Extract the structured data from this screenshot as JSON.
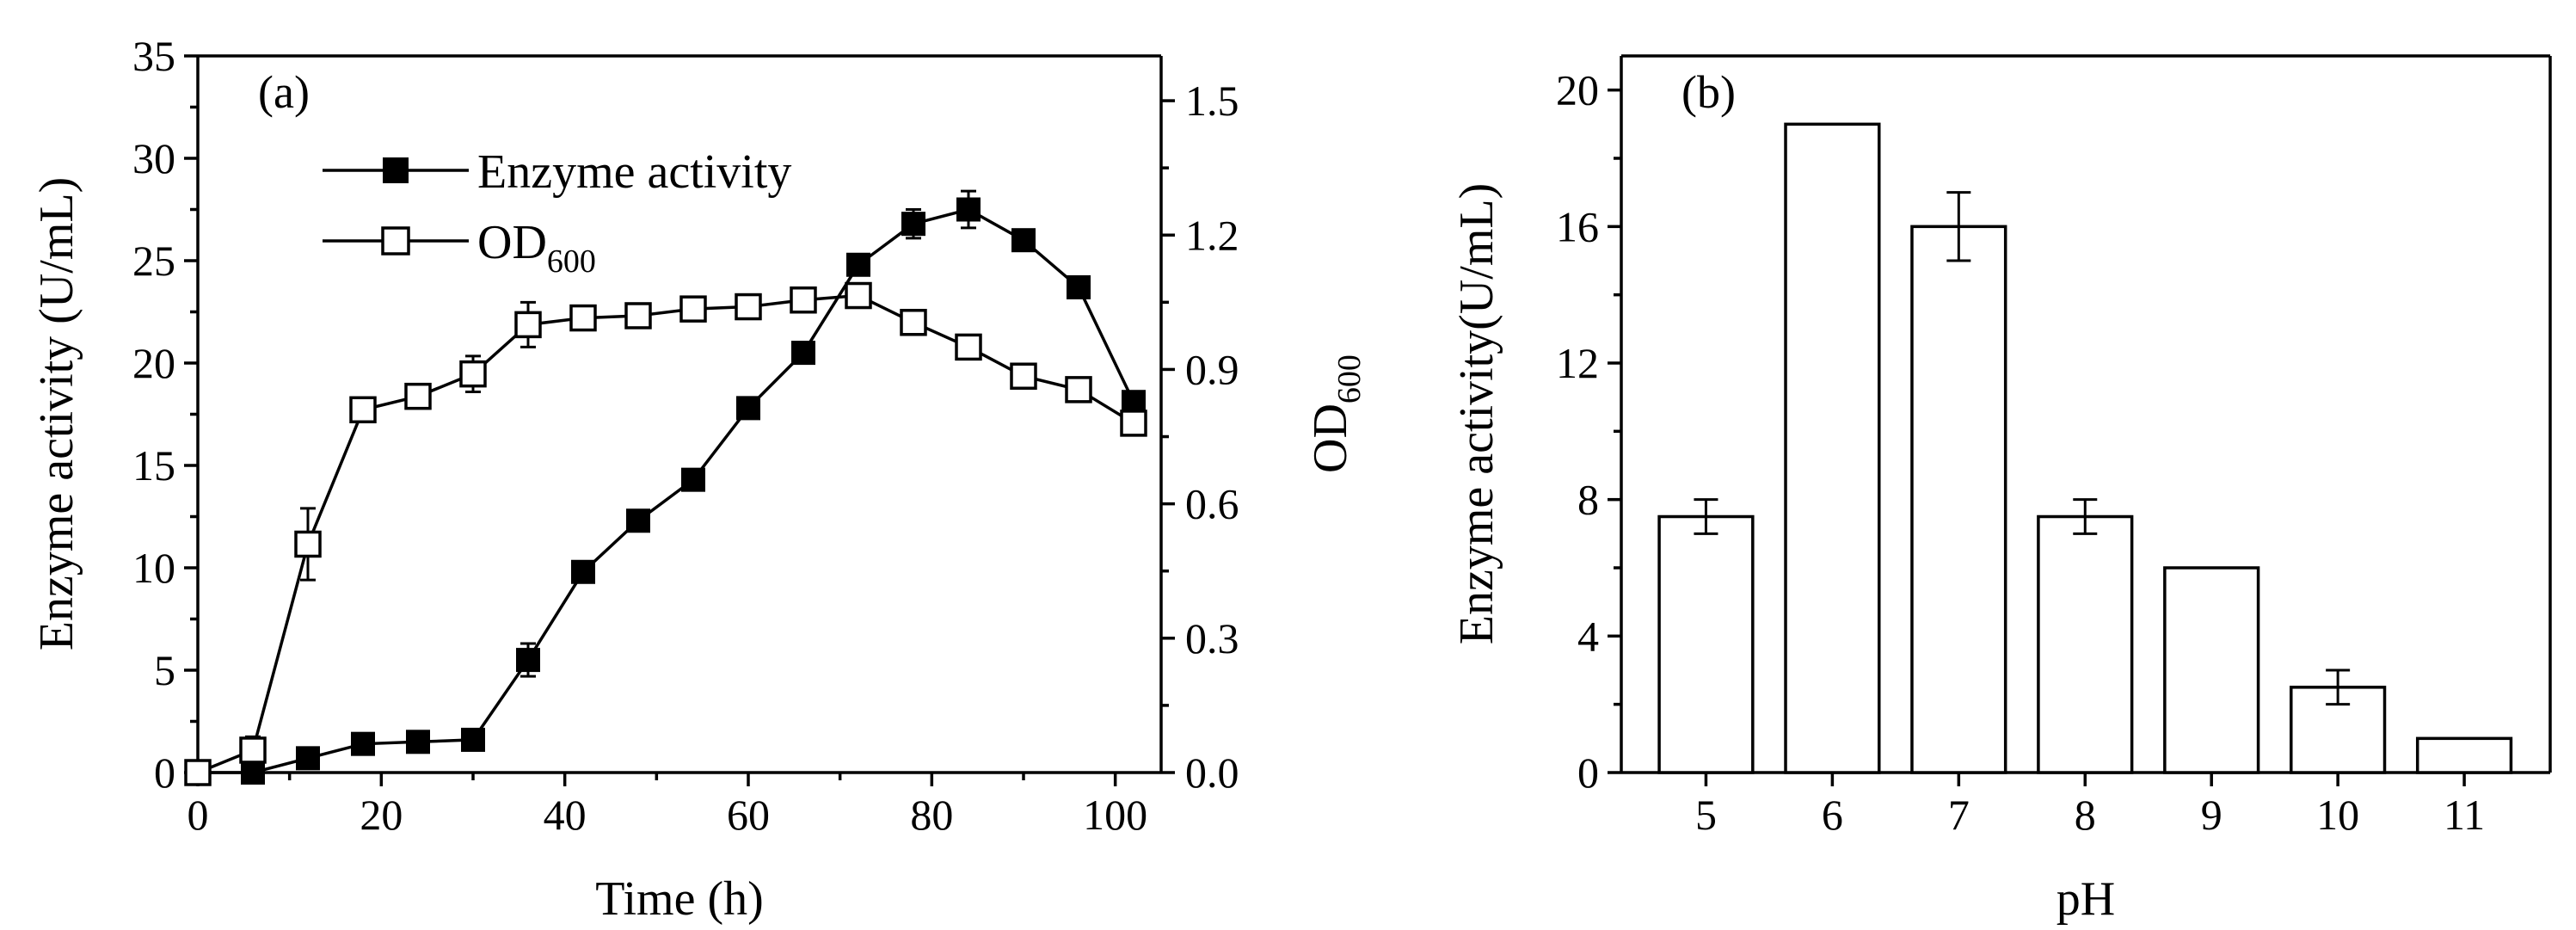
{
  "chart_data": [
    {
      "type": "line",
      "panel_label": "(a)",
      "xlabel": "Time (h)",
      "ylabel": "Enzyme activity (U/mL)",
      "y2label": "OD",
      "y2label_sub": "600",
      "xlim": [
        0,
        105
      ],
      "ylim": [
        0,
        35
      ],
      "y2lim": [
        0,
        1.6
      ],
      "xticks": [
        "0",
        "20",
        "40",
        "60",
        "80",
        "100"
      ],
      "yticks": [
        "0",
        "5",
        "10",
        "15",
        "20",
        "25",
        "30",
        "35"
      ],
      "y2ticks": [
        "0.0",
        "0.3",
        "0.6",
        "0.9",
        "1.2",
        "1.5"
      ],
      "series": [
        {
          "name": "Enzyme activity",
          "name_sub": "",
          "marker": "filled-square",
          "axis": "left",
          "x": [
            0,
            6,
            12,
            18,
            24,
            30,
            36,
            42,
            48,
            54,
            60,
            66,
            72,
            78,
            84,
            90,
            96,
            102
          ],
          "y": [
            0,
            0,
            0.7,
            1.4,
            1.5,
            1.6,
            5.5,
            9.8,
            12.3,
            14.3,
            17.8,
            20.5,
            24.8,
            26.8,
            27.5,
            26,
            23.7,
            18.1
          ],
          "err": [
            0,
            0,
            0.2,
            0.3,
            0.2,
            0.2,
            0.8,
            0.3,
            0.3,
            0.3,
            0.3,
            0.3,
            0.4,
            0.7,
            0.9,
            0.4,
            0.3,
            0.5
          ]
        },
        {
          "name": "OD",
          "name_sub": "600",
          "marker": "open-square",
          "axis": "right",
          "x": [
            0,
            6,
            12,
            18,
            24,
            30,
            36,
            42,
            48,
            54,
            60,
            66,
            72,
            78,
            84,
            90,
            96,
            102
          ],
          "y": [
            0,
            0.05,
            0.51,
            0.81,
            0.84,
            0.89,
            1.0,
            1.015,
            1.02,
            1.035,
            1.04,
            1.055,
            1.065,
            1.005,
            0.95,
            0.885,
            0.855,
            0.78
          ],
          "err": [
            0,
            0.03,
            0.08,
            0.02,
            0.02,
            0.04,
            0.05,
            0.015,
            0.015,
            0.015,
            0.015,
            0.015,
            0.02,
            0.02,
            0.015,
            0.015,
            0.015,
            0.02
          ]
        }
      ],
      "legend": "top-left"
    },
    {
      "type": "bar",
      "panel_label": "(b)",
      "xlabel": "pH",
      "ylabel": "Enzyme activity(U/mL)",
      "categories": [
        "5",
        "6",
        "7",
        "8",
        "9",
        "10",
        "11"
      ],
      "values": [
        7.5,
        19,
        16,
        7.5,
        6,
        2.5,
        1
      ],
      "err": [
        0.5,
        0,
        1,
        0.5,
        0,
        0.5,
        0
      ],
      "ylim": [
        0,
        21
      ],
      "yticks": [
        "0",
        "4",
        "8",
        "12",
        "16",
        "20"
      ]
    }
  ]
}
